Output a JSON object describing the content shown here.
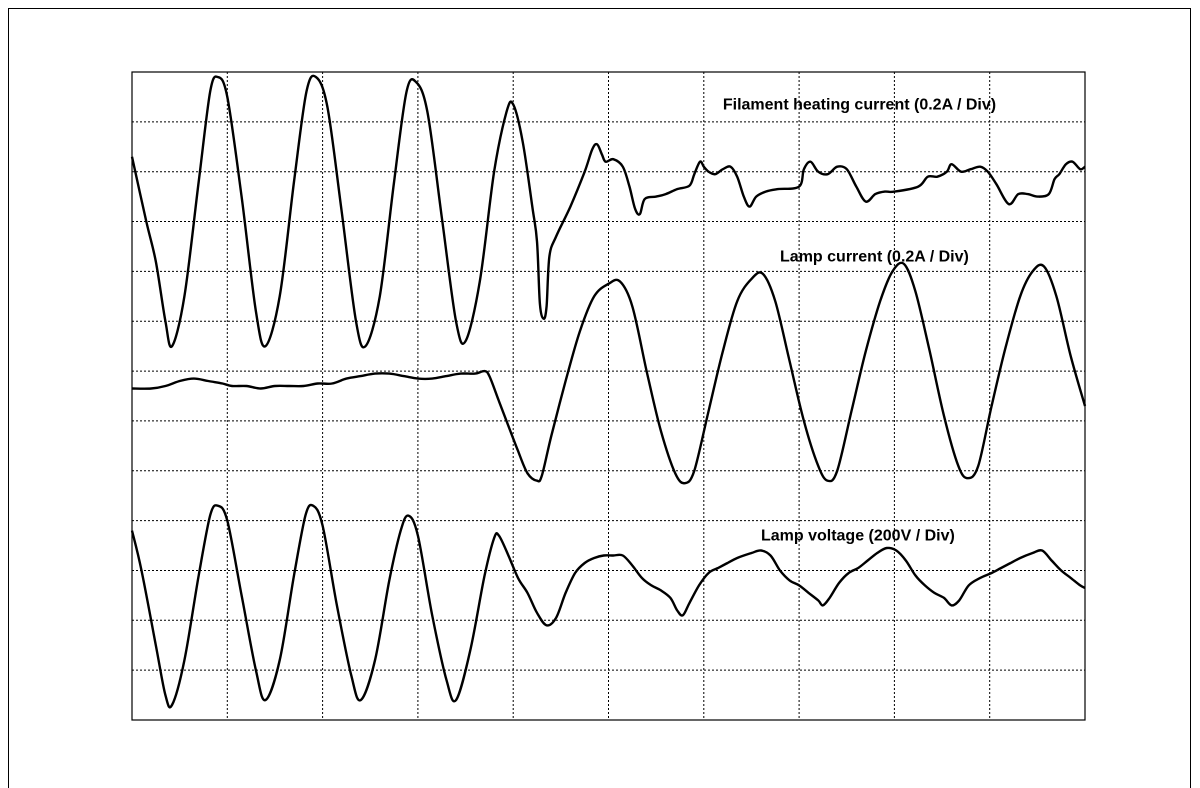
{
  "chart_data": {
    "type": "line",
    "title": "",
    "xlabel": "",
    "ylabel": "",
    "grid": true,
    "grid_divisions": {
      "x": 10,
      "y": 13
    },
    "xlim": [
      0,
      10
    ],
    "ylim": [
      0,
      13
    ],
    "series": [
      {
        "name": "Filament heating current (0.2A / Div)",
        "label_anchor": [
          6.2,
          12.25
        ],
        "points": [
          [
            0,
            11.3
          ],
          [
            0.15,
            10.0
          ],
          [
            0.25,
            9.2
          ],
          [
            0.35,
            8.0
          ],
          [
            0.42,
            7.5
          ],
          [
            0.55,
            8.5
          ],
          [
            0.7,
            10.8
          ],
          [
            0.82,
            12.6
          ],
          [
            0.9,
            12.9
          ],
          [
            1.0,
            12.5
          ],
          [
            1.15,
            10.5
          ],
          [
            1.3,
            8.2
          ],
          [
            1.4,
            7.5
          ],
          [
            1.55,
            8.5
          ],
          [
            1.7,
            10.8
          ],
          [
            1.83,
            12.6
          ],
          [
            1.93,
            12.9
          ],
          [
            2.05,
            12.3
          ],
          [
            2.2,
            10.2
          ],
          [
            2.35,
            8.0
          ],
          [
            2.45,
            7.5
          ],
          [
            2.6,
            8.5
          ],
          [
            2.75,
            10.8
          ],
          [
            2.88,
            12.6
          ],
          [
            2.98,
            12.8
          ],
          [
            3.1,
            12.2
          ],
          [
            3.25,
            10.1
          ],
          [
            3.4,
            8.0
          ],
          [
            3.5,
            7.6
          ],
          [
            3.65,
            8.8
          ],
          [
            3.8,
            11.0
          ],
          [
            3.93,
            12.2
          ],
          [
            4.0,
            12.35
          ],
          [
            4.1,
            11.6
          ],
          [
            4.2,
            10.3
          ],
          [
            4.25,
            9.6
          ],
          [
            4.28,
            8.35
          ],
          [
            4.32,
            8.05
          ],
          [
            4.35,
            8.3
          ],
          [
            4.38,
            9.3
          ],
          [
            4.45,
            9.7
          ],
          [
            4.6,
            10.3
          ],
          [
            4.75,
            11.0
          ],
          [
            4.83,
            11.45
          ],
          [
            4.88,
            11.55
          ],
          [
            4.93,
            11.35
          ],
          [
            4.97,
            11.2
          ],
          [
            5.05,
            11.25
          ],
          [
            5.15,
            11.1
          ],
          [
            5.22,
            10.7
          ],
          [
            5.28,
            10.25
          ],
          [
            5.33,
            10.15
          ],
          [
            5.38,
            10.45
          ],
          [
            5.5,
            10.5
          ],
          [
            5.6,
            10.55
          ],
          [
            5.72,
            10.65
          ],
          [
            5.85,
            10.72
          ],
          [
            5.9,
            10.95
          ],
          [
            5.96,
            11.2
          ],
          [
            6.0,
            11.1
          ],
          [
            6.05,
            11.0
          ],
          [
            6.12,
            10.95
          ],
          [
            6.2,
            11.05
          ],
          [
            6.28,
            11.1
          ],
          [
            6.35,
            10.9
          ],
          [
            6.42,
            10.5
          ],
          [
            6.48,
            10.3
          ],
          [
            6.55,
            10.5
          ],
          [
            6.65,
            10.6
          ],
          [
            6.78,
            10.65
          ],
          [
            7.0,
            10.7
          ],
          [
            7.05,
            11.05
          ],
          [
            7.12,
            11.2
          ],
          [
            7.2,
            11.0
          ],
          [
            7.3,
            10.95
          ],
          [
            7.4,
            11.1
          ],
          [
            7.5,
            11.05
          ],
          [
            7.6,
            10.7
          ],
          [
            7.7,
            10.4
          ],
          [
            7.8,
            10.55
          ],
          [
            7.9,
            10.6
          ],
          [
            8.0,
            10.6
          ],
          [
            8.25,
            10.7
          ],
          [
            8.35,
            10.9
          ],
          [
            8.45,
            10.9
          ],
          [
            8.55,
            11.0
          ],
          [
            8.6,
            11.15
          ],
          [
            8.7,
            11.0
          ],
          [
            8.8,
            11.05
          ],
          [
            8.9,
            11.1
          ],
          [
            8.98,
            11.0
          ],
          [
            9.07,
            10.75
          ],
          [
            9.2,
            10.35
          ],
          [
            9.3,
            10.55
          ],
          [
            9.4,
            10.55
          ],
          [
            9.5,
            10.5
          ],
          [
            9.62,
            10.55
          ],
          [
            9.68,
            10.85
          ],
          [
            9.73,
            10.95
          ],
          [
            9.8,
            11.15
          ],
          [
            9.87,
            11.2
          ],
          [
            9.95,
            11.05
          ],
          [
            10.0,
            11.1
          ]
        ]
      },
      {
        "name": "Lamp current (0.2A / Div)",
        "label_anchor": [
          6.8,
          9.2
        ],
        "points": [
          [
            0,
            6.65
          ],
          [
            0.2,
            6.65
          ],
          [
            0.35,
            6.7
          ],
          [
            0.5,
            6.8
          ],
          [
            0.65,
            6.85
          ],
          [
            0.8,
            6.8
          ],
          [
            0.95,
            6.75
          ],
          [
            1.05,
            6.7
          ],
          [
            1.2,
            6.7
          ],
          [
            1.35,
            6.65
          ],
          [
            1.5,
            6.7
          ],
          [
            1.65,
            6.7
          ],
          [
            1.8,
            6.7
          ],
          [
            1.95,
            6.75
          ],
          [
            2.1,
            6.75
          ],
          [
            2.25,
            6.85
          ],
          [
            2.4,
            6.9
          ],
          [
            2.55,
            6.95
          ],
          [
            2.7,
            6.95
          ],
          [
            2.85,
            6.9
          ],
          [
            3.0,
            6.85
          ],
          [
            3.15,
            6.85
          ],
          [
            3.3,
            6.9
          ],
          [
            3.45,
            6.95
          ],
          [
            3.6,
            6.95
          ],
          [
            3.7,
            7.0
          ],
          [
            3.75,
            6.9
          ],
          [
            3.85,
            6.4
          ],
          [
            3.95,
            5.9
          ],
          [
            4.05,
            5.4
          ],
          [
            4.15,
            4.95
          ],
          [
            4.25,
            4.8
          ],
          [
            4.3,
            4.9
          ],
          [
            4.4,
            5.7
          ],
          [
            4.55,
            6.8
          ],
          [
            4.7,
            7.8
          ],
          [
            4.85,
            8.5
          ],
          [
            5.0,
            8.75
          ],
          [
            5.12,
            8.8
          ],
          [
            5.25,
            8.3
          ],
          [
            5.4,
            7.0
          ],
          [
            5.55,
            5.8
          ],
          [
            5.7,
            4.95
          ],
          [
            5.8,
            4.75
          ],
          [
            5.9,
            5.0
          ],
          [
            6.05,
            6.2
          ],
          [
            6.2,
            7.4
          ],
          [
            6.35,
            8.4
          ],
          [
            6.5,
            8.85
          ],
          [
            6.62,
            8.95
          ],
          [
            6.75,
            8.4
          ],
          [
            6.9,
            7.2
          ],
          [
            7.05,
            6.0
          ],
          [
            7.2,
            5.1
          ],
          [
            7.3,
            4.8
          ],
          [
            7.4,
            5.0
          ],
          [
            7.55,
            6.2
          ],
          [
            7.7,
            7.4
          ],
          [
            7.85,
            8.4
          ],
          [
            7.98,
            9.0
          ],
          [
            8.1,
            9.15
          ],
          [
            8.22,
            8.6
          ],
          [
            8.37,
            7.4
          ],
          [
            8.52,
            6.1
          ],
          [
            8.67,
            5.1
          ],
          [
            8.77,
            4.85
          ],
          [
            8.88,
            5.1
          ],
          [
            9.02,
            6.3
          ],
          [
            9.17,
            7.5
          ],
          [
            9.32,
            8.5
          ],
          [
            9.45,
            9.0
          ],
          [
            9.57,
            9.1
          ],
          [
            9.7,
            8.5
          ],
          [
            9.85,
            7.3
          ],
          [
            10.0,
            6.3
          ]
        ]
      },
      {
        "name": "Lamp voltage (200V / Div)",
        "label_anchor": [
          6.6,
          3.6
        ],
        "points": [
          [
            0,
            3.8
          ],
          [
            0.1,
            3.0
          ],
          [
            0.25,
            1.5
          ],
          [
            0.35,
            0.5
          ],
          [
            0.42,
            0.3
          ],
          [
            0.55,
            1.2
          ],
          [
            0.7,
            2.9
          ],
          [
            0.82,
            4.1
          ],
          [
            0.9,
            4.3
          ],
          [
            1.0,
            4.0
          ],
          [
            1.15,
            2.5
          ],
          [
            1.3,
            1.0
          ],
          [
            1.4,
            0.4
          ],
          [
            1.55,
            1.2
          ],
          [
            1.7,
            2.9
          ],
          [
            1.82,
            4.1
          ],
          [
            1.9,
            4.3
          ],
          [
            2.0,
            3.9
          ],
          [
            2.15,
            2.3
          ],
          [
            2.3,
            0.9
          ],
          [
            2.4,
            0.4
          ],
          [
            2.55,
            1.2
          ],
          [
            2.7,
            2.8
          ],
          [
            2.82,
            3.8
          ],
          [
            2.9,
            4.1
          ],
          [
            3.0,
            3.7
          ],
          [
            3.15,
            2.1
          ],
          [
            3.3,
            0.8
          ],
          [
            3.4,
            0.4
          ],
          [
            3.55,
            1.4
          ],
          [
            3.7,
            2.9
          ],
          [
            3.8,
            3.65
          ],
          [
            3.85,
            3.7
          ],
          [
            3.95,
            3.3
          ],
          [
            4.05,
            2.85
          ],
          [
            4.15,
            2.55
          ],
          [
            4.25,
            2.15
          ],
          [
            4.35,
            1.9
          ],
          [
            4.45,
            2.05
          ],
          [
            4.55,
            2.55
          ],
          [
            4.65,
            2.95
          ],
          [
            4.75,
            3.15
          ],
          [
            4.85,
            3.25
          ],
          [
            4.95,
            3.3
          ],
          [
            5.05,
            3.3
          ],
          [
            5.15,
            3.3
          ],
          [
            5.25,
            3.1
          ],
          [
            5.35,
            2.85
          ],
          [
            5.45,
            2.7
          ],
          [
            5.55,
            2.6
          ],
          [
            5.65,
            2.45
          ],
          [
            5.72,
            2.2
          ],
          [
            5.78,
            2.1
          ],
          [
            5.85,
            2.35
          ],
          [
            5.95,
            2.7
          ],
          [
            6.05,
            2.95
          ],
          [
            6.15,
            3.05
          ],
          [
            6.25,
            3.15
          ],
          [
            6.35,
            3.25
          ],
          [
            6.5,
            3.35
          ],
          [
            6.6,
            3.4
          ],
          [
            6.7,
            3.3
          ],
          [
            6.8,
            3.0
          ],
          [
            6.9,
            2.8
          ],
          [
            7.0,
            2.7
          ],
          [
            7.1,
            2.55
          ],
          [
            7.2,
            2.4
          ],
          [
            7.25,
            2.3
          ],
          [
            7.32,
            2.45
          ],
          [
            7.42,
            2.75
          ],
          [
            7.52,
            2.95
          ],
          [
            7.62,
            3.05
          ],
          [
            7.72,
            3.2
          ],
          [
            7.82,
            3.35
          ],
          [
            7.92,
            3.45
          ],
          [
            8.02,
            3.4
          ],
          [
            8.12,
            3.2
          ],
          [
            8.22,
            2.9
          ],
          [
            8.32,
            2.7
          ],
          [
            8.42,
            2.55
          ],
          [
            8.52,
            2.45
          ],
          [
            8.6,
            2.3
          ],
          [
            8.68,
            2.4
          ],
          [
            8.78,
            2.7
          ],
          [
            8.9,
            2.85
          ],
          [
            9.02,
            2.95
          ],
          [
            9.12,
            3.05
          ],
          [
            9.22,
            3.15
          ],
          [
            9.32,
            3.25
          ],
          [
            9.45,
            3.35
          ],
          [
            9.55,
            3.4
          ],
          [
            9.65,
            3.2
          ],
          [
            9.75,
            3.0
          ],
          [
            9.85,
            2.85
          ],
          [
            9.95,
            2.7
          ],
          [
            10.0,
            2.65
          ]
        ]
      }
    ]
  }
}
